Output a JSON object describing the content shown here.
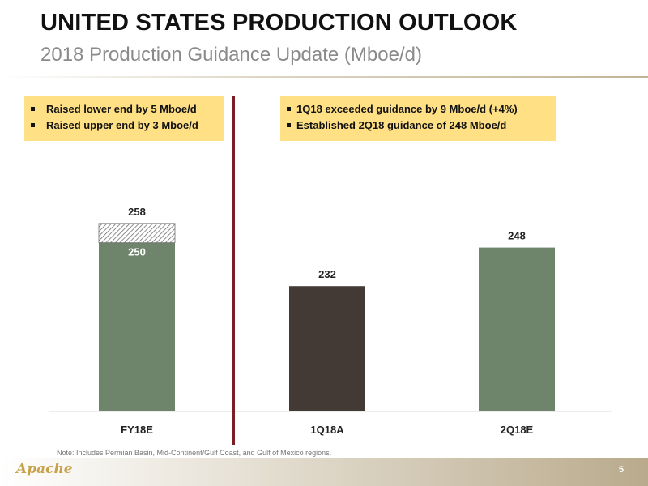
{
  "header": {
    "title": "UNITED STATES PRODUCTION OUTLOOK",
    "subtitle": "2018 Production Guidance Update (Mboe/d)"
  },
  "callouts": {
    "left": [
      "Raised lower end by 5 Mboe/d",
      "Raised upper end by 3 Mboe/d"
    ],
    "right": [
      "1Q18 exceeded guidance by 9 Mboe/d (+4%)",
      "Established 2Q18 guidance of 248 Mboe/d"
    ]
  },
  "chart_data": {
    "type": "bar",
    "categories": [
      "FY18E",
      "1Q18A",
      "2Q18E"
    ],
    "values": [
      250,
      232,
      248
    ],
    "range_top": {
      "category": "FY18E",
      "low": 250,
      "high": 258,
      "label": "258"
    },
    "bar_colors": [
      "#6e846b",
      "#433a35",
      "#6e846b"
    ],
    "value_labels": [
      "250",
      "232",
      "248"
    ],
    "title": "2018 Production Guidance Update (Mboe/d)",
    "xlabel": "",
    "ylabel": "",
    "ylim": [
      180,
      265
    ],
    "grid": false,
    "legend": "none"
  },
  "footer": {
    "note": "Note: Includes Permian Basin, Mid-Continent/Gulf Coast, and Gulf of Mexico regions.",
    "logo_text": "Apache",
    "page_number": "5"
  },
  "colors": {
    "callout_fill": "#ffe085",
    "divider": "#7b1f24",
    "bar_green": "#6e846b",
    "bar_dark": "#433a35"
  }
}
